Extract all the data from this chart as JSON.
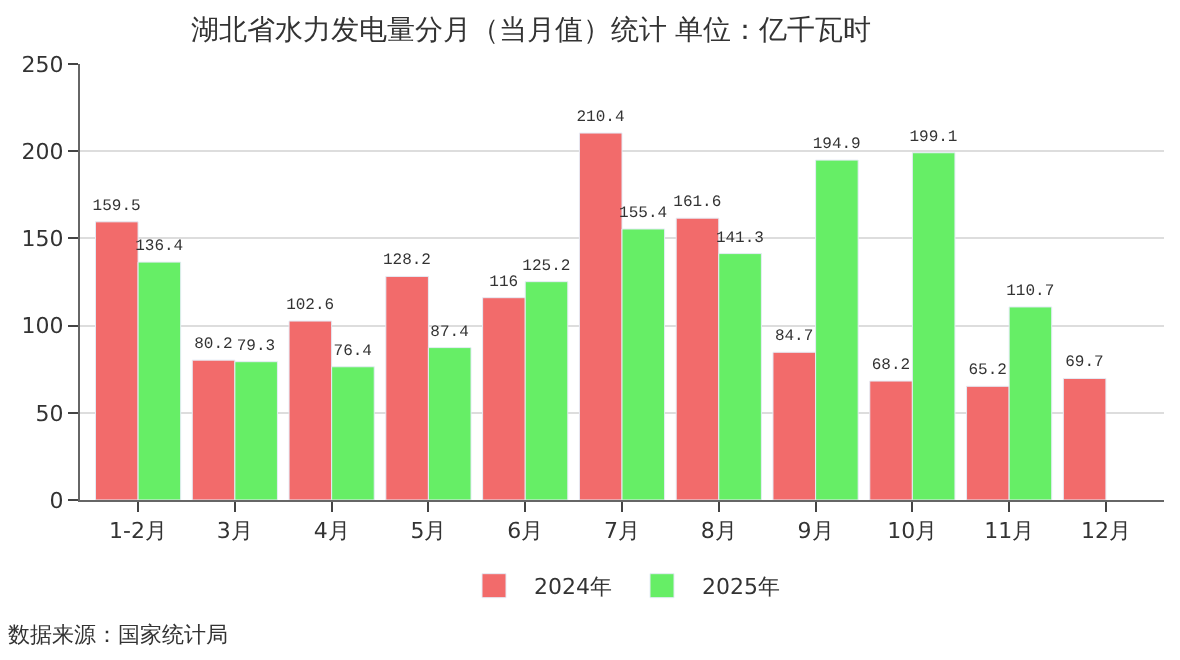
{
  "chart_data": {
    "type": "bar",
    "title": "湖北省水力发电量分月（当月值）统计 单位：亿千瓦时",
    "categories": [
      "1-2月",
      "3月",
      "4月",
      "5月",
      "6月",
      "7月",
      "8月",
      "9月",
      "10月",
      "11月",
      "12月"
    ],
    "series": [
      {
        "name": "2024年",
        "color": "#f26b6b",
        "values": [
          159.5,
          80.2,
          102.6,
          128.2,
          116,
          210.4,
          161.6,
          84.7,
          68.2,
          65.2,
          69.7
        ]
      },
      {
        "name": "2025年",
        "color": "#66ee66",
        "values": [
          136.4,
          79.3,
          76.4,
          87.4,
          125.2,
          155.4,
          141.3,
          194.9,
          199.1,
          110.7,
          null
        ]
      }
    ],
    "ylim": [
      0,
      250
    ],
    "yticks": [
      0,
      50,
      100,
      150,
      200,
      250
    ],
    "grid": "y",
    "legend": "bottom",
    "data_labels": true,
    "annotations": [
      "数据来源：国家统计局"
    ]
  }
}
